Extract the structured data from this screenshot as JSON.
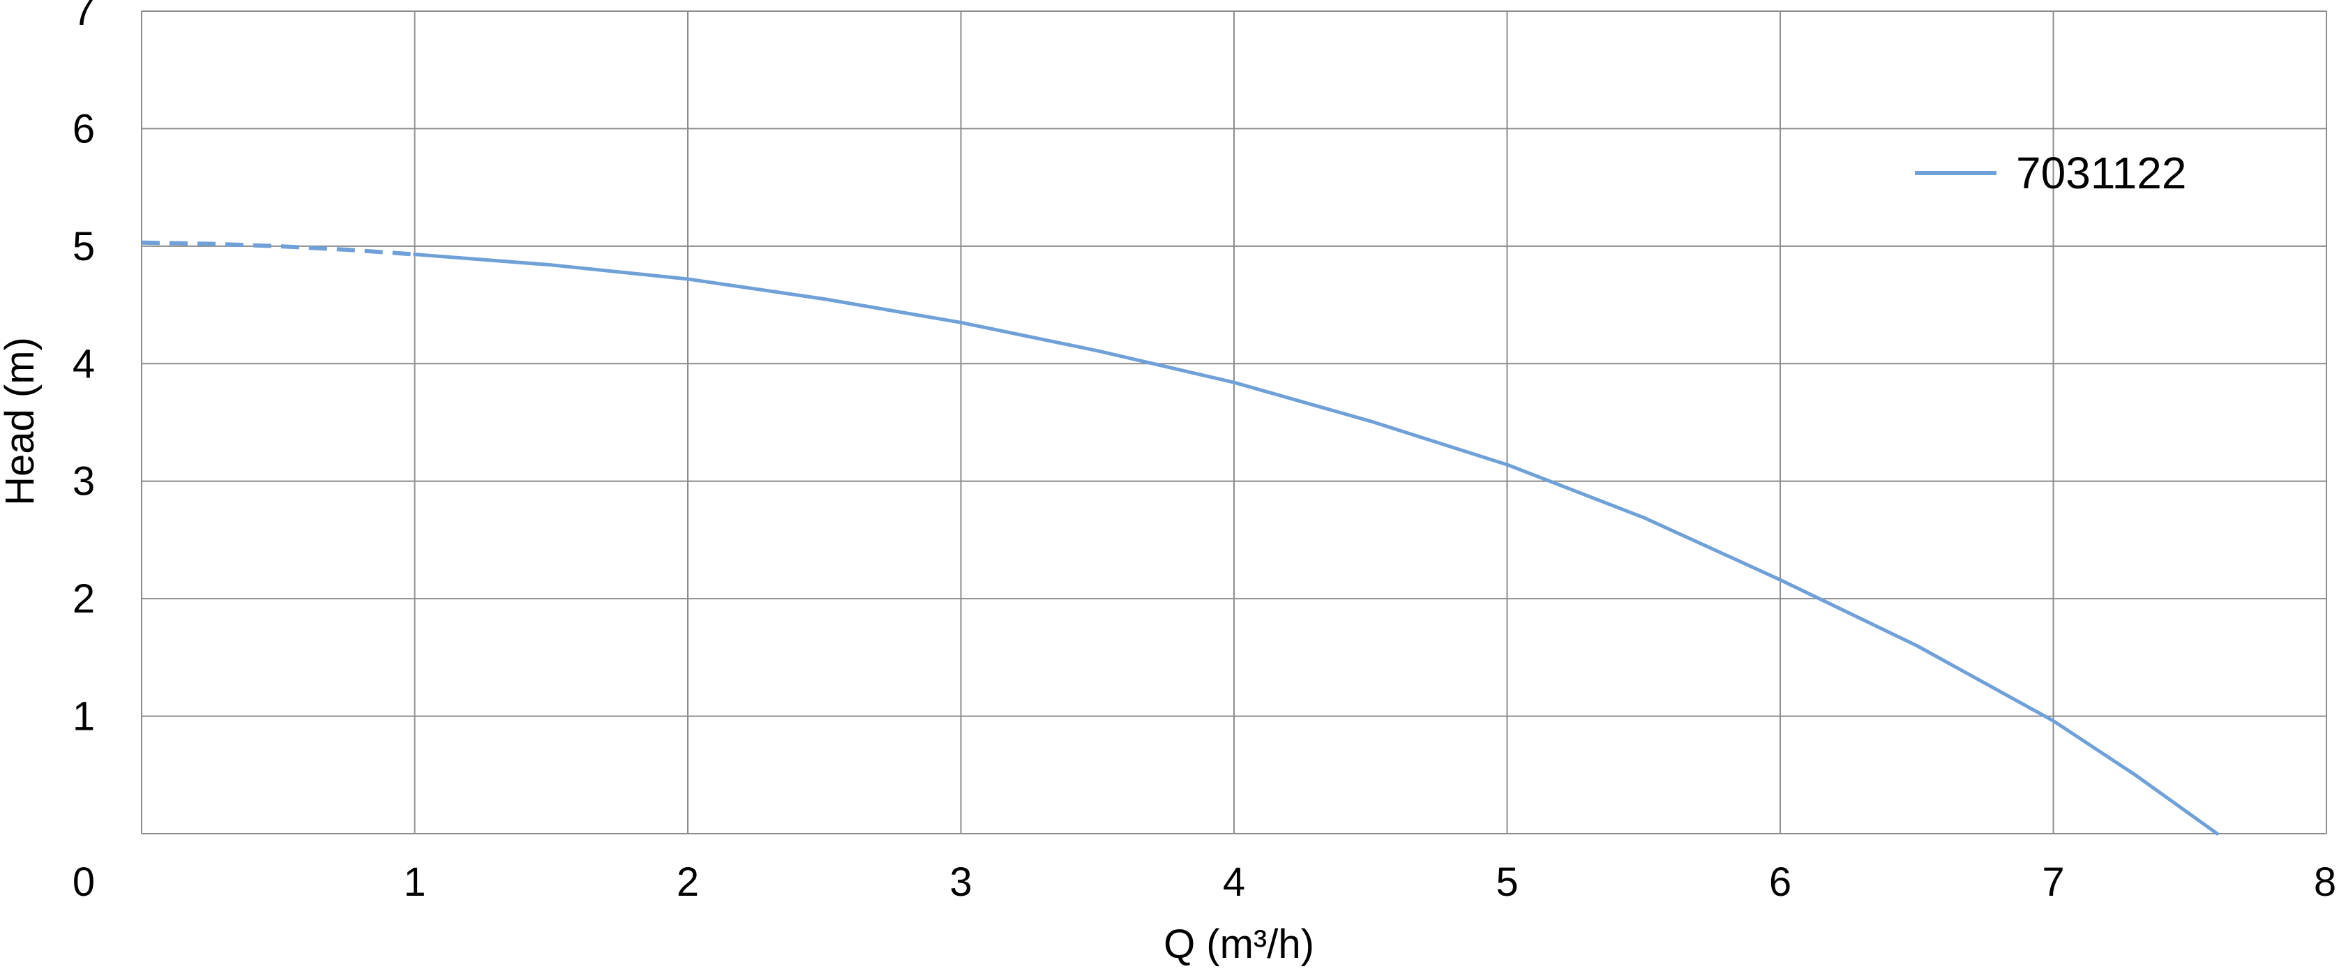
{
  "chart_data": {
    "type": "line",
    "title": "",
    "xlabel": "Q (m³/h)",
    "ylabel": "Head (m)",
    "xlim": [
      0,
      8
    ],
    "ylim": [
      0,
      7
    ],
    "x_ticks": [
      "0",
      "1",
      "2",
      "3",
      "4",
      "5",
      "6",
      "7",
      "8"
    ],
    "y_ticks": [
      "0",
      "1",
      "2",
      "3",
      "4",
      "5",
      "6",
      "7"
    ],
    "grid": true,
    "legend_position": "top-right",
    "colors": {
      "series": "#6fa0d8",
      "grid": "#8c8c8c",
      "text": "#000000"
    },
    "series": [
      {
        "name": "7031122",
        "dashed_x": [
          0,
          0.25,
          0.5,
          0.75,
          1.0
        ],
        "dashed_y": [
          5.03,
          5.02,
          5.0,
          4.97,
          4.93
        ],
        "x": [
          1.0,
          1.5,
          2.0,
          2.5,
          3.0,
          3.5,
          4.0,
          4.5,
          5.0,
          5.5,
          6.0,
          6.5,
          7.0,
          7.3,
          7.6
        ],
        "y": [
          4.93,
          4.84,
          4.72,
          4.55,
          4.35,
          4.11,
          3.84,
          3.51,
          3.14,
          2.69,
          2.16,
          1.6,
          0.96,
          0.5,
          0.0
        ]
      }
    ]
  }
}
